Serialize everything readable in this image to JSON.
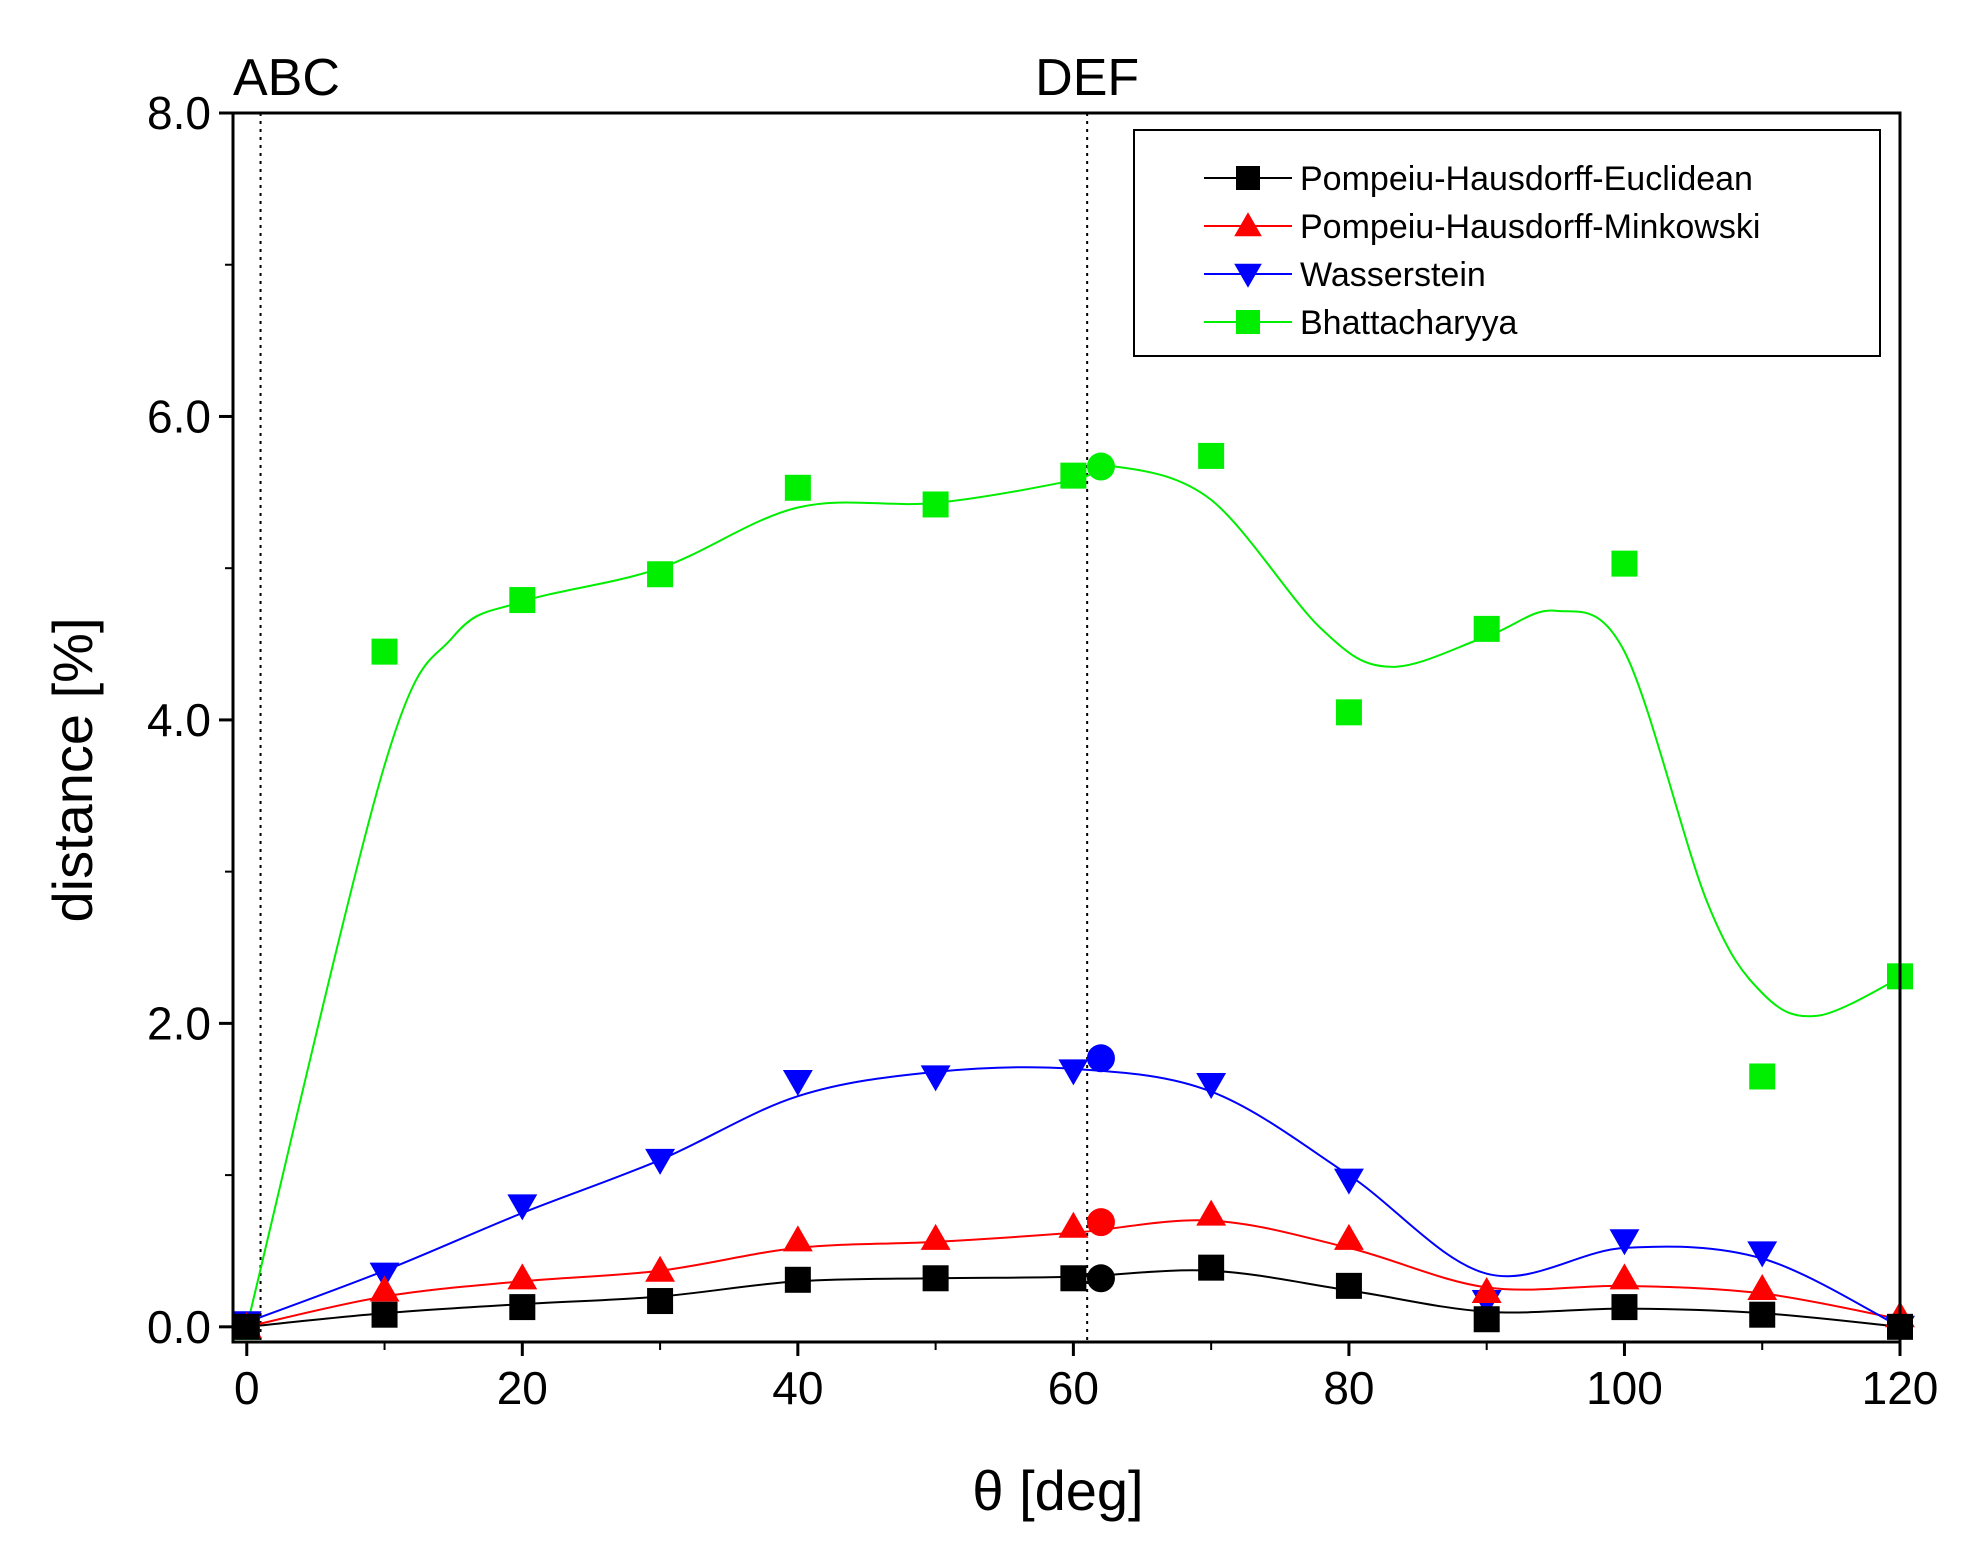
{
  "chart_data": {
    "type": "scatter",
    "xlabel": "θ [deg]",
    "ylabel": "distance [%]",
    "xlim": [
      -1,
      120
    ],
    "ylim": [
      -0.1,
      8.0
    ],
    "x_ticks": [
      0,
      20,
      40,
      60,
      80,
      100,
      120
    ],
    "x_tick_labels": [
      "0",
      "20",
      "40",
      "60",
      "80",
      "100",
      "120"
    ],
    "y_ticks": [
      0,
      2,
      4,
      6,
      8
    ],
    "y_tick_labels": [
      "0.0",
      "2.0",
      "4.0",
      "6.0",
      "8.0"
    ],
    "y_minor_ticks": [
      1,
      3,
      5,
      7
    ],
    "x_minor_ticks": [
      10,
      30,
      50,
      70,
      90,
      110
    ],
    "reference_lines": [
      {
        "label": "ABC",
        "x": 1
      },
      {
        "label": "DEF",
        "x": 61
      }
    ],
    "legend_position": "top-right",
    "series": [
      {
        "name": "Pompeiu-Hausdorff-Euclidean",
        "color": "#000000",
        "marker": "square",
        "x": [
          0,
          10,
          20,
          30,
          40,
          50,
          60,
          70,
          80,
          90,
          100,
          110,
          120
        ],
        "y": [
          0.0,
          0.08,
          0.13,
          0.17,
          0.31,
          0.32,
          0.32,
          0.39,
          0.27,
          0.05,
          0.13,
          0.08,
          0.0
        ],
        "fit": [
          [
            0,
            0.0
          ],
          [
            10,
            0.09
          ],
          [
            20,
            0.15
          ],
          [
            30,
            0.2
          ],
          [
            40,
            0.3
          ],
          [
            50,
            0.32
          ],
          [
            60,
            0.33
          ],
          [
            70,
            0.37
          ],
          [
            80,
            0.24
          ],
          [
            90,
            0.1
          ],
          [
            100,
            0.12
          ],
          [
            110,
            0.09
          ],
          [
            120,
            0.0
          ]
        ],
        "highlight": {
          "x": 62,
          "y": 0.32
        }
      },
      {
        "name": "Pompeiu-Hausdorff-Minkowski",
        "color": "#ff0000",
        "marker": "triangle-up",
        "x": [
          0,
          10,
          20,
          30,
          40,
          50,
          60,
          70,
          80,
          90,
          100,
          110,
          120
        ],
        "y": [
          0.0,
          0.24,
          0.32,
          0.37,
          0.57,
          0.58,
          0.66,
          0.74,
          0.58,
          0.23,
          0.32,
          0.25,
          0.07
        ],
        "fit": [
          [
            0,
            0.0
          ],
          [
            10,
            0.2
          ],
          [
            20,
            0.3
          ],
          [
            30,
            0.37
          ],
          [
            40,
            0.52
          ],
          [
            50,
            0.56
          ],
          [
            60,
            0.62
          ],
          [
            70,
            0.7
          ],
          [
            80,
            0.52
          ],
          [
            90,
            0.26
          ],
          [
            100,
            0.27
          ],
          [
            110,
            0.22
          ],
          [
            120,
            0.05
          ]
        ],
        "highlight": {
          "x": 62,
          "y": 0.69
        }
      },
      {
        "name": "Wasserstein",
        "color": "#0000ff",
        "marker": "triangle-down",
        "x": [
          0,
          10,
          20,
          30,
          40,
          50,
          60,
          70,
          80,
          90,
          100,
          110,
          120
        ],
        "y": [
          0.03,
          0.35,
          0.8,
          1.1,
          1.62,
          1.65,
          1.69,
          1.6,
          0.97,
          0.17,
          0.57,
          0.49,
          0.0
        ],
        "fit": [
          [
            0,
            0.03
          ],
          [
            10,
            0.37
          ],
          [
            20,
            0.75
          ],
          [
            30,
            1.1
          ],
          [
            40,
            1.52
          ],
          [
            50,
            1.68
          ],
          [
            60,
            1.7
          ],
          [
            70,
            1.55
          ],
          [
            80,
            1.0
          ],
          [
            90,
            0.35
          ],
          [
            100,
            0.52
          ],
          [
            110,
            0.45
          ],
          [
            120,
            0.0
          ]
        ],
        "highlight": {
          "x": 62,
          "y": 1.77
        }
      },
      {
        "name": "Bhattacharyya",
        "color": "#00ee00",
        "marker": "square",
        "x": [
          0,
          10,
          20,
          30,
          40,
          50,
          60,
          70,
          80,
          90,
          100,
          110,
          120
        ],
        "y": [
          0.0,
          4.45,
          4.79,
          4.96,
          5.53,
          5.42,
          5.61,
          5.74,
          4.05,
          4.6,
          5.03,
          1.65,
          2.31
        ],
        "fit": [
          [
            0,
            0.0
          ],
          [
            10,
            3.7
          ],
          [
            15,
            4.55
          ],
          [
            20,
            4.78
          ],
          [
            30,
            5.0
          ],
          [
            40,
            5.4
          ],
          [
            50,
            5.43
          ],
          [
            60,
            5.58
          ],
          [
            63,
            5.67
          ],
          [
            70,
            5.45
          ],
          [
            78,
            4.6
          ],
          [
            83,
            4.35
          ],
          [
            90,
            4.55
          ],
          [
            95,
            4.72
          ],
          [
            100,
            4.45
          ],
          [
            106,
            2.8
          ],
          [
            110,
            2.2
          ],
          [
            114,
            2.05
          ],
          [
            120,
            2.3
          ]
        ],
        "highlight": {
          "x": 62,
          "y": 5.67
        }
      }
    ]
  }
}
